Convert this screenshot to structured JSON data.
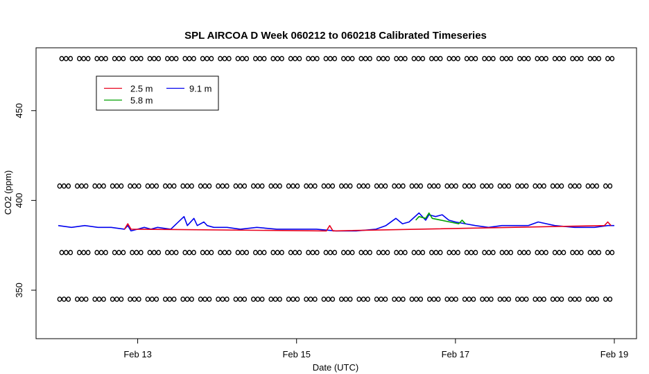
{
  "chart_data": {
    "type": "line",
    "title": "SPL AIRCOA D  Week 060212 to 060218  Calibrated Timeseries",
    "xlabel": "Date (UTC)",
    "ylabel": "CO2 (ppm)",
    "xlim": [
      "2006-02-12T00:00",
      "2006-02-19T00:00"
    ],
    "ylim": [
      323,
      485
    ],
    "x_ticks": [
      {
        "label": "Feb 13",
        "value": "2006-02-13T00:00"
      },
      {
        "label": "Feb 15",
        "value": "2006-02-15T00:00"
      },
      {
        "label": "Feb 17",
        "value": "2006-02-17T00:00"
      },
      {
        "label": "Feb 19",
        "value": "2006-02-19T00:00"
      }
    ],
    "y_ticks": [
      350,
      400,
      450
    ],
    "legend": {
      "placement": "top-left",
      "entries": [
        {
          "label": "2.5 m",
          "color": "#e8001c"
        },
        {
          "label": "5.8 m",
          "color": "#00a000"
        },
        {
          "label": "9.1 m",
          "color": "#0000ee"
        }
      ]
    },
    "series": [
      {
        "name": "9.1 m",
        "color": "#0000ee",
        "x": [
          "2006-02-12T00:00",
          "2006-02-12T04:00",
          "2006-02-12T08:00",
          "2006-02-12T12:00",
          "2006-02-12T16:00",
          "2006-02-12T20:00",
          "2006-02-12T21:00",
          "2006-02-12T22:00",
          "2006-02-13T00:00",
          "2006-02-13T02:00",
          "2006-02-13T04:00",
          "2006-02-13T06:00",
          "2006-02-13T10:00",
          "2006-02-13T14:00",
          "2006-02-13T15:00",
          "2006-02-13T17:00",
          "2006-02-13T18:00",
          "2006-02-13T20:00",
          "2006-02-13T21:00",
          "2006-02-13T23:00",
          "2006-02-14T03:00",
          "2006-02-14T07:00",
          "2006-02-14T12:00",
          "2006-02-14T18:00",
          "2006-02-15T00:00",
          "2006-02-15T06:00",
          "2006-02-15T12:00",
          "2006-02-15T18:00",
          "2006-02-16T00:00",
          "2006-02-16T03:00",
          "2006-02-16T06:00",
          "2006-02-16T08:00",
          "2006-02-16T10:00",
          "2006-02-16T13:00",
          "2006-02-16T15:00",
          "2006-02-16T16:00",
          "2006-02-16T18:00",
          "2006-02-16T20:00",
          "2006-02-16T22:00",
          "2006-02-17T00:00",
          "2006-02-17T03:00",
          "2006-02-17T06:00",
          "2006-02-17T10:00",
          "2006-02-17T14:00",
          "2006-02-17T18:00",
          "2006-02-17T22:00",
          "2006-02-18T01:00",
          "2006-02-18T06:00",
          "2006-02-18T12:00",
          "2006-02-18T18:00",
          "2006-02-18T22:00",
          "2006-02-19T00:00"
        ],
        "values": [
          386,
          385,
          386,
          385,
          385,
          384,
          386,
          383,
          384,
          385,
          384,
          385,
          384,
          391,
          386,
          390,
          386,
          388,
          386,
          385,
          385,
          384,
          385,
          384,
          384,
          384,
          383,
          383,
          384,
          386,
          390,
          387,
          388,
          393,
          389,
          392,
          391,
          392,
          389,
          388,
          387,
          386,
          385,
          386,
          386,
          386,
          388,
          386,
          385,
          385,
          386,
          386
        ]
      },
      {
        "name": "2.5 m",
        "color": "#e8001c",
        "x": [
          "2006-02-12T20:00",
          "2006-02-12T21:00",
          "2006-02-12T22:00",
          "2006-02-15T09:00",
          "2006-02-15T10:00",
          "2006-02-15T11:00",
          "2006-02-18T21:00",
          "2006-02-18T22:00",
          "2006-02-18T23:00"
        ],
        "values": [
          384,
          387,
          384,
          383,
          386,
          383,
          386,
          388,
          386
        ]
      },
      {
        "name": "5.8 m",
        "color": "#00a000",
        "x": [
          "2006-02-16T12:00",
          "2006-02-16T13:00",
          "2006-02-16T15:00",
          "2006-02-16T16:00",
          "2006-02-16T17:00",
          "2006-02-17T01:00",
          "2006-02-17T02:00",
          "2006-02-17T03:00"
        ],
        "values": [
          389,
          391,
          390,
          393,
          390,
          387,
          389,
          387
        ]
      }
    ],
    "calibration_levels_ppm": [
      345,
      371,
      408,
      479
    ],
    "calibration_marker": "o"
  }
}
